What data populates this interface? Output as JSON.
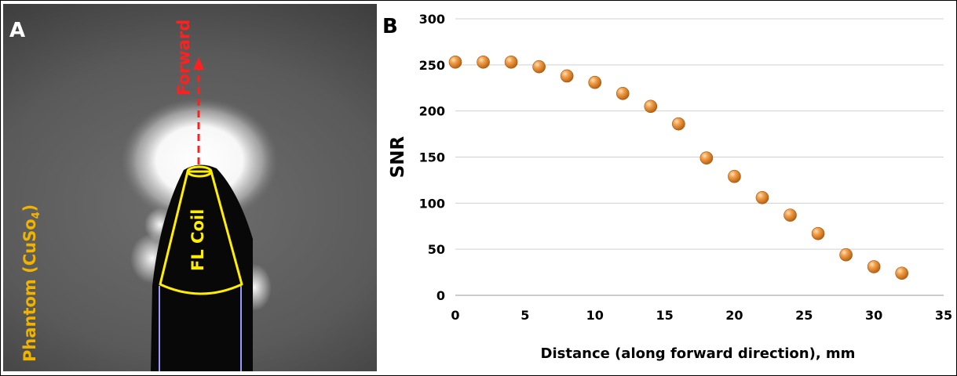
{
  "panel_a": {
    "letter": "A",
    "forward_label": "Forward",
    "phantom_label": "Phantom (CuSo",
    "phantom_subscript": "4",
    "phantom_suffix": ")",
    "coil_label": "FL Coil",
    "colors": {
      "forward": "#ff2020",
      "phantom": "#f0b400",
      "coil": "#ffee00",
      "edge": "#9999ff"
    }
  },
  "panel_b": {
    "letter": "B"
  },
  "chart_data": {
    "type": "scatter",
    "title": "",
    "xlabel": "Distance (along forward direction), mm",
    "ylabel": "SNR",
    "xlim": [
      0,
      35
    ],
    "ylim": [
      0,
      300
    ],
    "xticks": [
      0,
      5,
      10,
      15,
      20,
      25,
      30,
      35
    ],
    "yticks": [
      0,
      50,
      100,
      150,
      200,
      250,
      300
    ],
    "grid": "horizontal",
    "marker_color": "#e8872a",
    "series": [
      {
        "x": [
          0,
          2,
          4,
          6,
          8,
          10,
          12,
          14,
          16,
          18,
          20,
          22,
          24,
          26,
          28,
          30,
          32
        ],
        "y": [
          253,
          253,
          253,
          248,
          238,
          231,
          219,
          205,
          186,
          149,
          129,
          106,
          87,
          67,
          44,
          31,
          24
        ]
      }
    ]
  }
}
